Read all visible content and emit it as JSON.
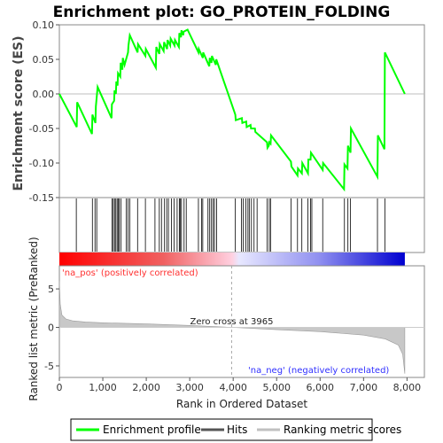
{
  "chart_data": {
    "type": "line",
    "title": "Enrichment plot: GO_PROTEIN_FOLDING",
    "top_panel": {
      "ylabel": "Enrichment score (ES)",
      "ylim": [
        -0.15,
        0.1
      ],
      "yticks": [
        "0.10",
        "0.05",
        "0.00",
        "-0.05",
        "-0.10",
        "-0.15"
      ],
      "ytick_values": [
        0.1,
        0.05,
        0.0,
        -0.05,
        -0.1,
        -0.15
      ],
      "series": [
        {
          "name": "Enrichment profile",
          "color": "#00ff00",
          "x": [
            0,
            400,
            410,
            750,
            760,
            830,
            840,
            880,
            1200,
            1210,
            1260,
            1270,
            1300,
            1310,
            1340,
            1350,
            1400,
            1410,
            1450,
            1460,
            1500,
            1580,
            1590,
            1620,
            1800,
            1810,
            1980,
            1990,
            2220,
            2230,
            2300,
            2310,
            2400,
            2410,
            2480,
            2490,
            2550,
            2560,
            2650,
            2660,
            2750,
            2760,
            2800,
            2810,
            2850,
            2860,
            2950,
            3200,
            3210,
            3300,
            3310,
            3450,
            3460,
            3500,
            3510,
            3600,
            3610,
            4050,
            4060,
            4200,
            4210,
            4300,
            4310,
            4400,
            4410,
            4500,
            4510,
            4780,
            4790,
            4820,
            4830,
            4860,
            4870,
            5330,
            5340,
            5480,
            5490,
            5580,
            5590,
            5720,
            5730,
            5780,
            5790,
            6060,
            6070,
            6550,
            6560,
            6630,
            6640,
            6700,
            6710,
            7320,
            7330,
            7480,
            7490,
            7950
          ],
          "y": [
            0.0,
            -0.048,
            -0.012,
            -0.058,
            -0.03,
            -0.042,
            -0.018,
            0.01,
            -0.035,
            -0.015,
            -0.01,
            0.005,
            0.0,
            0.018,
            0.012,
            0.03,
            0.025,
            0.045,
            0.035,
            0.052,
            0.042,
            0.06,
            0.07,
            0.085,
            0.06,
            0.072,
            0.055,
            0.065,
            0.038,
            0.068,
            0.058,
            0.072,
            0.062,
            0.075,
            0.065,
            0.078,
            0.07,
            0.08,
            0.07,
            0.078,
            0.068,
            0.088,
            0.082,
            0.092,
            0.085,
            0.09,
            0.093,
            0.06,
            0.065,
            0.052,
            0.06,
            0.04,
            0.052,
            0.045,
            0.055,
            0.042,
            0.05,
            -0.03,
            -0.038,
            -0.035,
            -0.042,
            -0.04,
            -0.048,
            -0.045,
            -0.05,
            -0.05,
            -0.055,
            -0.07,
            -0.078,
            -0.075,
            -0.07,
            -0.072,
            -0.06,
            -0.098,
            -0.105,
            -0.118,
            -0.108,
            -0.115,
            -0.1,
            -0.115,
            -0.095,
            -0.095,
            -0.085,
            -0.11,
            -0.1,
            -0.138,
            -0.102,
            -0.108,
            -0.075,
            -0.085,
            -0.05,
            -0.12,
            -0.06,
            -0.08,
            0.06,
            0.0
          ]
        }
      ]
    },
    "hits_panel": {
      "positions": [
        390,
        760,
        820,
        860,
        1210,
        1240,
        1270,
        1300,
        1330,
        1360,
        1380,
        1420,
        1540,
        1580,
        1620,
        1800,
        1980,
        2200,
        2300,
        2350,
        2420,
        2470,
        2510,
        2580,
        2640,
        2710,
        2760,
        2780,
        2810,
        2870,
        2920,
        3200,
        3270,
        3300,
        3420,
        3460,
        3500,
        3540,
        3570,
        3620,
        4050,
        4190,
        4230,
        4290,
        4340,
        4370,
        4420,
        4480,
        4550,
        4780,
        4830,
        4860,
        5330,
        5480,
        5580,
        5720,
        5780,
        5810,
        6060,
        6560,
        6640,
        6700,
        7320,
        7490
      ],
      "color": "#000000"
    },
    "colorbar": {
      "pos_color": "#ff0000",
      "neg_color": "#0000ff"
    },
    "bottom_panel": {
      "xlabel": "Rank in Ordered Dataset",
      "ylabel": "Ranked list metric (PreRanked)",
      "xlim": [
        0,
        8400
      ],
      "xticks": [
        "0",
        "1,000",
        "2,000",
        "3,000",
        "4,000",
        "5,000",
        "6,000",
        "7,000",
        "8,000"
      ],
      "xtick_values": [
        0,
        1000,
        2000,
        3000,
        4000,
        5000,
        6000,
        7000,
        8000
      ],
      "ylim": [
        -6.5,
        8
      ],
      "yticks": [
        "5",
        "0",
        "-5"
      ],
      "ytick_values": [
        5,
        0,
        -5
      ],
      "zero_cross_label": "Zero cross at 3965",
      "zero_cross": 3965,
      "pos_label": "'na_pos' (positively correlated)",
      "neg_label": "'na_neg' (negatively correlated)",
      "metric_profile": {
        "x": [
          0,
          20,
          60,
          150,
          300,
          600,
          1000,
          2000,
          3000,
          3965,
          5000,
          6000,
          7000,
          7500,
          7800,
          7900,
          7950
        ],
        "y": [
          6.0,
          3.0,
          1.6,
          1.1,
          0.85,
          0.7,
          0.6,
          0.45,
          0.25,
          0.0,
          -0.3,
          -0.55,
          -1.0,
          -1.5,
          -2.3,
          -3.5,
          -6.0
        ]
      }
    },
    "legend": {
      "items": [
        {
          "label": "Enrichment profile",
          "color": "#00ff00"
        },
        {
          "label": "Hits",
          "color": "#555555"
        },
        {
          "label": "Ranking metric scores",
          "color": "#c0c0c0"
        }
      ]
    }
  }
}
